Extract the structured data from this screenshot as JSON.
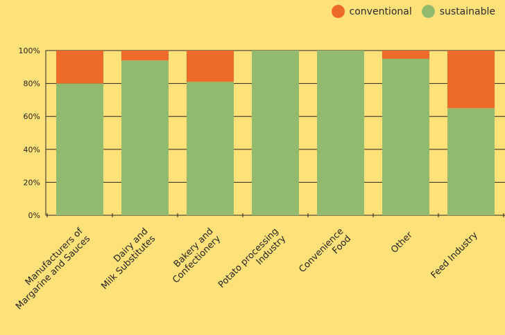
{
  "chart_data": {
    "type": "bar",
    "stacked": true,
    "categories": [
      [
        "Manufacturers of",
        "Margarine and Sauces"
      ],
      [
        "Dairy and",
        "Milk Substitutes"
      ],
      [
        "Bakery and",
        "Confectionery"
      ],
      [
        "Potato processing",
        "Industry"
      ],
      [
        "Convenience",
        "Food"
      ],
      [
        "Other"
      ],
      [
        "Feed Industry"
      ]
    ],
    "series": [
      {
        "name": "sustainable",
        "color": "#92BA6E",
        "values": [
          80,
          94,
          81,
          100,
          100,
          95,
          65
        ]
      },
      {
        "name": "conventional",
        "color": "#EE6A2A",
        "values": [
          20,
          6,
          19,
          0,
          0,
          5,
          35
        ]
      }
    ],
    "legend_order": [
      "conventional",
      "sustainable"
    ],
    "ylim": [
      0,
      100
    ],
    "yticks": [
      "0%",
      "20%",
      "40%",
      "60%",
      "80%",
      "100%"
    ],
    "legend_position": "top-right",
    "grid": true
  }
}
